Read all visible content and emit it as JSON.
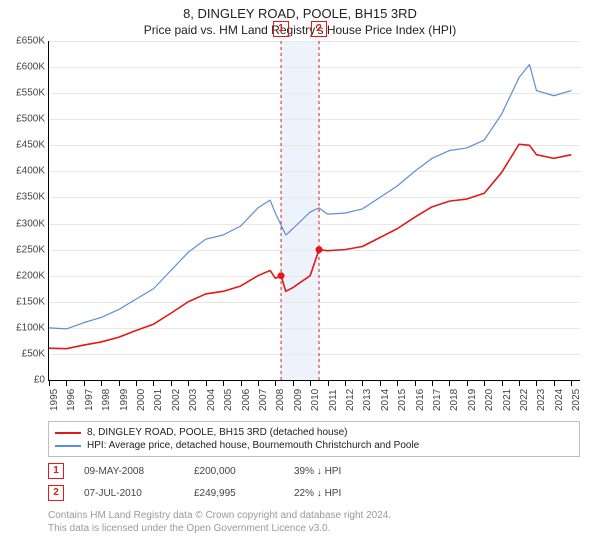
{
  "header": {
    "title": "8, DINGLEY ROAD, POOLE, BH15 3RD",
    "subtitle": "Price paid vs. HM Land Registry's House Price Index (HPI)"
  },
  "chart": {
    "type": "line",
    "background_color": "#ffffff",
    "grid_color": "#e8e8e8",
    "axis_color": "#000000",
    "label_fontsize": 10,
    "label_color": "#444444",
    "x_years": [
      1995,
      1996,
      1997,
      1998,
      1999,
      2000,
      2001,
      2002,
      2003,
      2004,
      2005,
      2006,
      2007,
      2008,
      2009,
      2010,
      2011,
      2012,
      2013,
      2014,
      2015,
      2016,
      2017,
      2018,
      2019,
      2020,
      2021,
      2022,
      2023,
      2024,
      2025
    ],
    "xlim": [
      1995,
      2025.5
    ],
    "ylim": [
      0,
      650000
    ],
    "ytick_step": 50000,
    "ytick_prefix": "£",
    "ytick_suffix": "K",
    "series": [
      {
        "name": "hpi",
        "label": "HPI: Average price, detached house, Bournemouth Christchurch and Poole",
        "color": "#5b8fd6",
        "line_width": 1.2,
        "data": [
          [
            1995,
            100000
          ],
          [
            1996,
            98000
          ],
          [
            1997,
            110000
          ],
          [
            1998,
            120000
          ],
          [
            1999,
            135000
          ],
          [
            2000,
            155000
          ],
          [
            2001,
            175000
          ],
          [
            2002,
            210000
          ],
          [
            2003,
            245000
          ],
          [
            2004,
            270000
          ],
          [
            2005,
            278000
          ],
          [
            2006,
            295000
          ],
          [
            2007,
            330000
          ],
          [
            2007.7,
            345000
          ],
          [
            2008,
            320000
          ],
          [
            2008.6,
            278000
          ],
          [
            2009,
            290000
          ],
          [
            2010,
            322000
          ],
          [
            2010.5,
            330000
          ],
          [
            2011,
            318000
          ],
          [
            2012,
            320000
          ],
          [
            2013,
            328000
          ],
          [
            2014,
            350000
          ],
          [
            2015,
            372000
          ],
          [
            2016,
            400000
          ],
          [
            2017,
            425000
          ],
          [
            2018,
            440000
          ],
          [
            2019,
            445000
          ],
          [
            2020,
            460000
          ],
          [
            2021,
            510000
          ],
          [
            2022,
            580000
          ],
          [
            2022.6,
            605000
          ],
          [
            2023,
            555000
          ],
          [
            2024,
            545000
          ],
          [
            2025,
            555000
          ]
        ]
      },
      {
        "name": "price_paid",
        "label": "8, DINGLEY ROAD, POOLE, BH15 3RD (detached house)",
        "color": "#e11919",
        "line_width": 1.6,
        "data": [
          [
            1995,
            61000
          ],
          [
            1996,
            60000
          ],
          [
            1997,
            67000
          ],
          [
            1998,
            73000
          ],
          [
            1999,
            82000
          ],
          [
            2000,
            95000
          ],
          [
            2001,
            107000
          ],
          [
            2002,
            128000
          ],
          [
            2003,
            150000
          ],
          [
            2004,
            165000
          ],
          [
            2005,
            170000
          ],
          [
            2006,
            180000
          ],
          [
            2007,
            200000
          ],
          [
            2007.7,
            210000
          ],
          [
            2008,
            195000
          ],
          [
            2008.33,
            200000
          ],
          [
            2008.6,
            170000
          ],
          [
            2009,
            177000
          ],
          [
            2010,
            200000
          ],
          [
            2010.51,
            249995
          ],
          [
            2011,
            248000
          ],
          [
            2012,
            250000
          ],
          [
            2013,
            256000
          ],
          [
            2014,
            273000
          ],
          [
            2015,
            290000
          ],
          [
            2016,
            312000
          ],
          [
            2017,
            332000
          ],
          [
            2018,
            343000
          ],
          [
            2019,
            347000
          ],
          [
            2020,
            358000
          ],
          [
            2021,
            398000
          ],
          [
            2022,
            452000
          ],
          [
            2022.6,
            450000
          ],
          [
            2023,
            432000
          ],
          [
            2024,
            425000
          ],
          [
            2025,
            432000
          ]
        ]
      }
    ],
    "sale_points": [
      {
        "x": 2008.33,
        "y": 200000,
        "color": "#e11919",
        "radius": 3.5
      },
      {
        "x": 2010.51,
        "y": 249995,
        "color": "#e11919",
        "radius": 3.5
      }
    ],
    "markers": [
      {
        "n": "1",
        "x": 2008.33,
        "line_color": "#e11919",
        "box_border": "#e11919",
        "box_text": "#e11919"
      },
      {
        "n": "2",
        "x": 2010.51,
        "line_color": "#e11919",
        "box_border": "#e11919",
        "box_text": "#e11919"
      }
    ],
    "marker_band": {
      "from_x": 2008.33,
      "to_x": 2010.51,
      "fill": "#eef3fb"
    }
  },
  "legend": {
    "border_color": "#bfbfbf",
    "fontsize": 10,
    "rows": [
      {
        "color": "#e11919",
        "label": "8, DINGLEY ROAD, POOLE, BH15 3RD (detached house)"
      },
      {
        "color": "#5b8fd6",
        "label": "HPI: Average price, detached house, Bournemouth Christchurch and Poole"
      }
    ]
  },
  "transactions": [
    {
      "n": "1",
      "box_color": "#e11919",
      "date": "09-MAY-2008",
      "price": "£200,000",
      "delta": "39% ↓ HPI"
    },
    {
      "n": "2",
      "box_color": "#e11919",
      "date": "07-JUL-2010",
      "price": "£249,995",
      "delta": "22% ↓ HPI"
    }
  ],
  "license": {
    "line1": "Contains HM Land Registry data © Crown copyright and database right 2024.",
    "line2": "This data is licensed under the Open Government Licence v3.0."
  }
}
